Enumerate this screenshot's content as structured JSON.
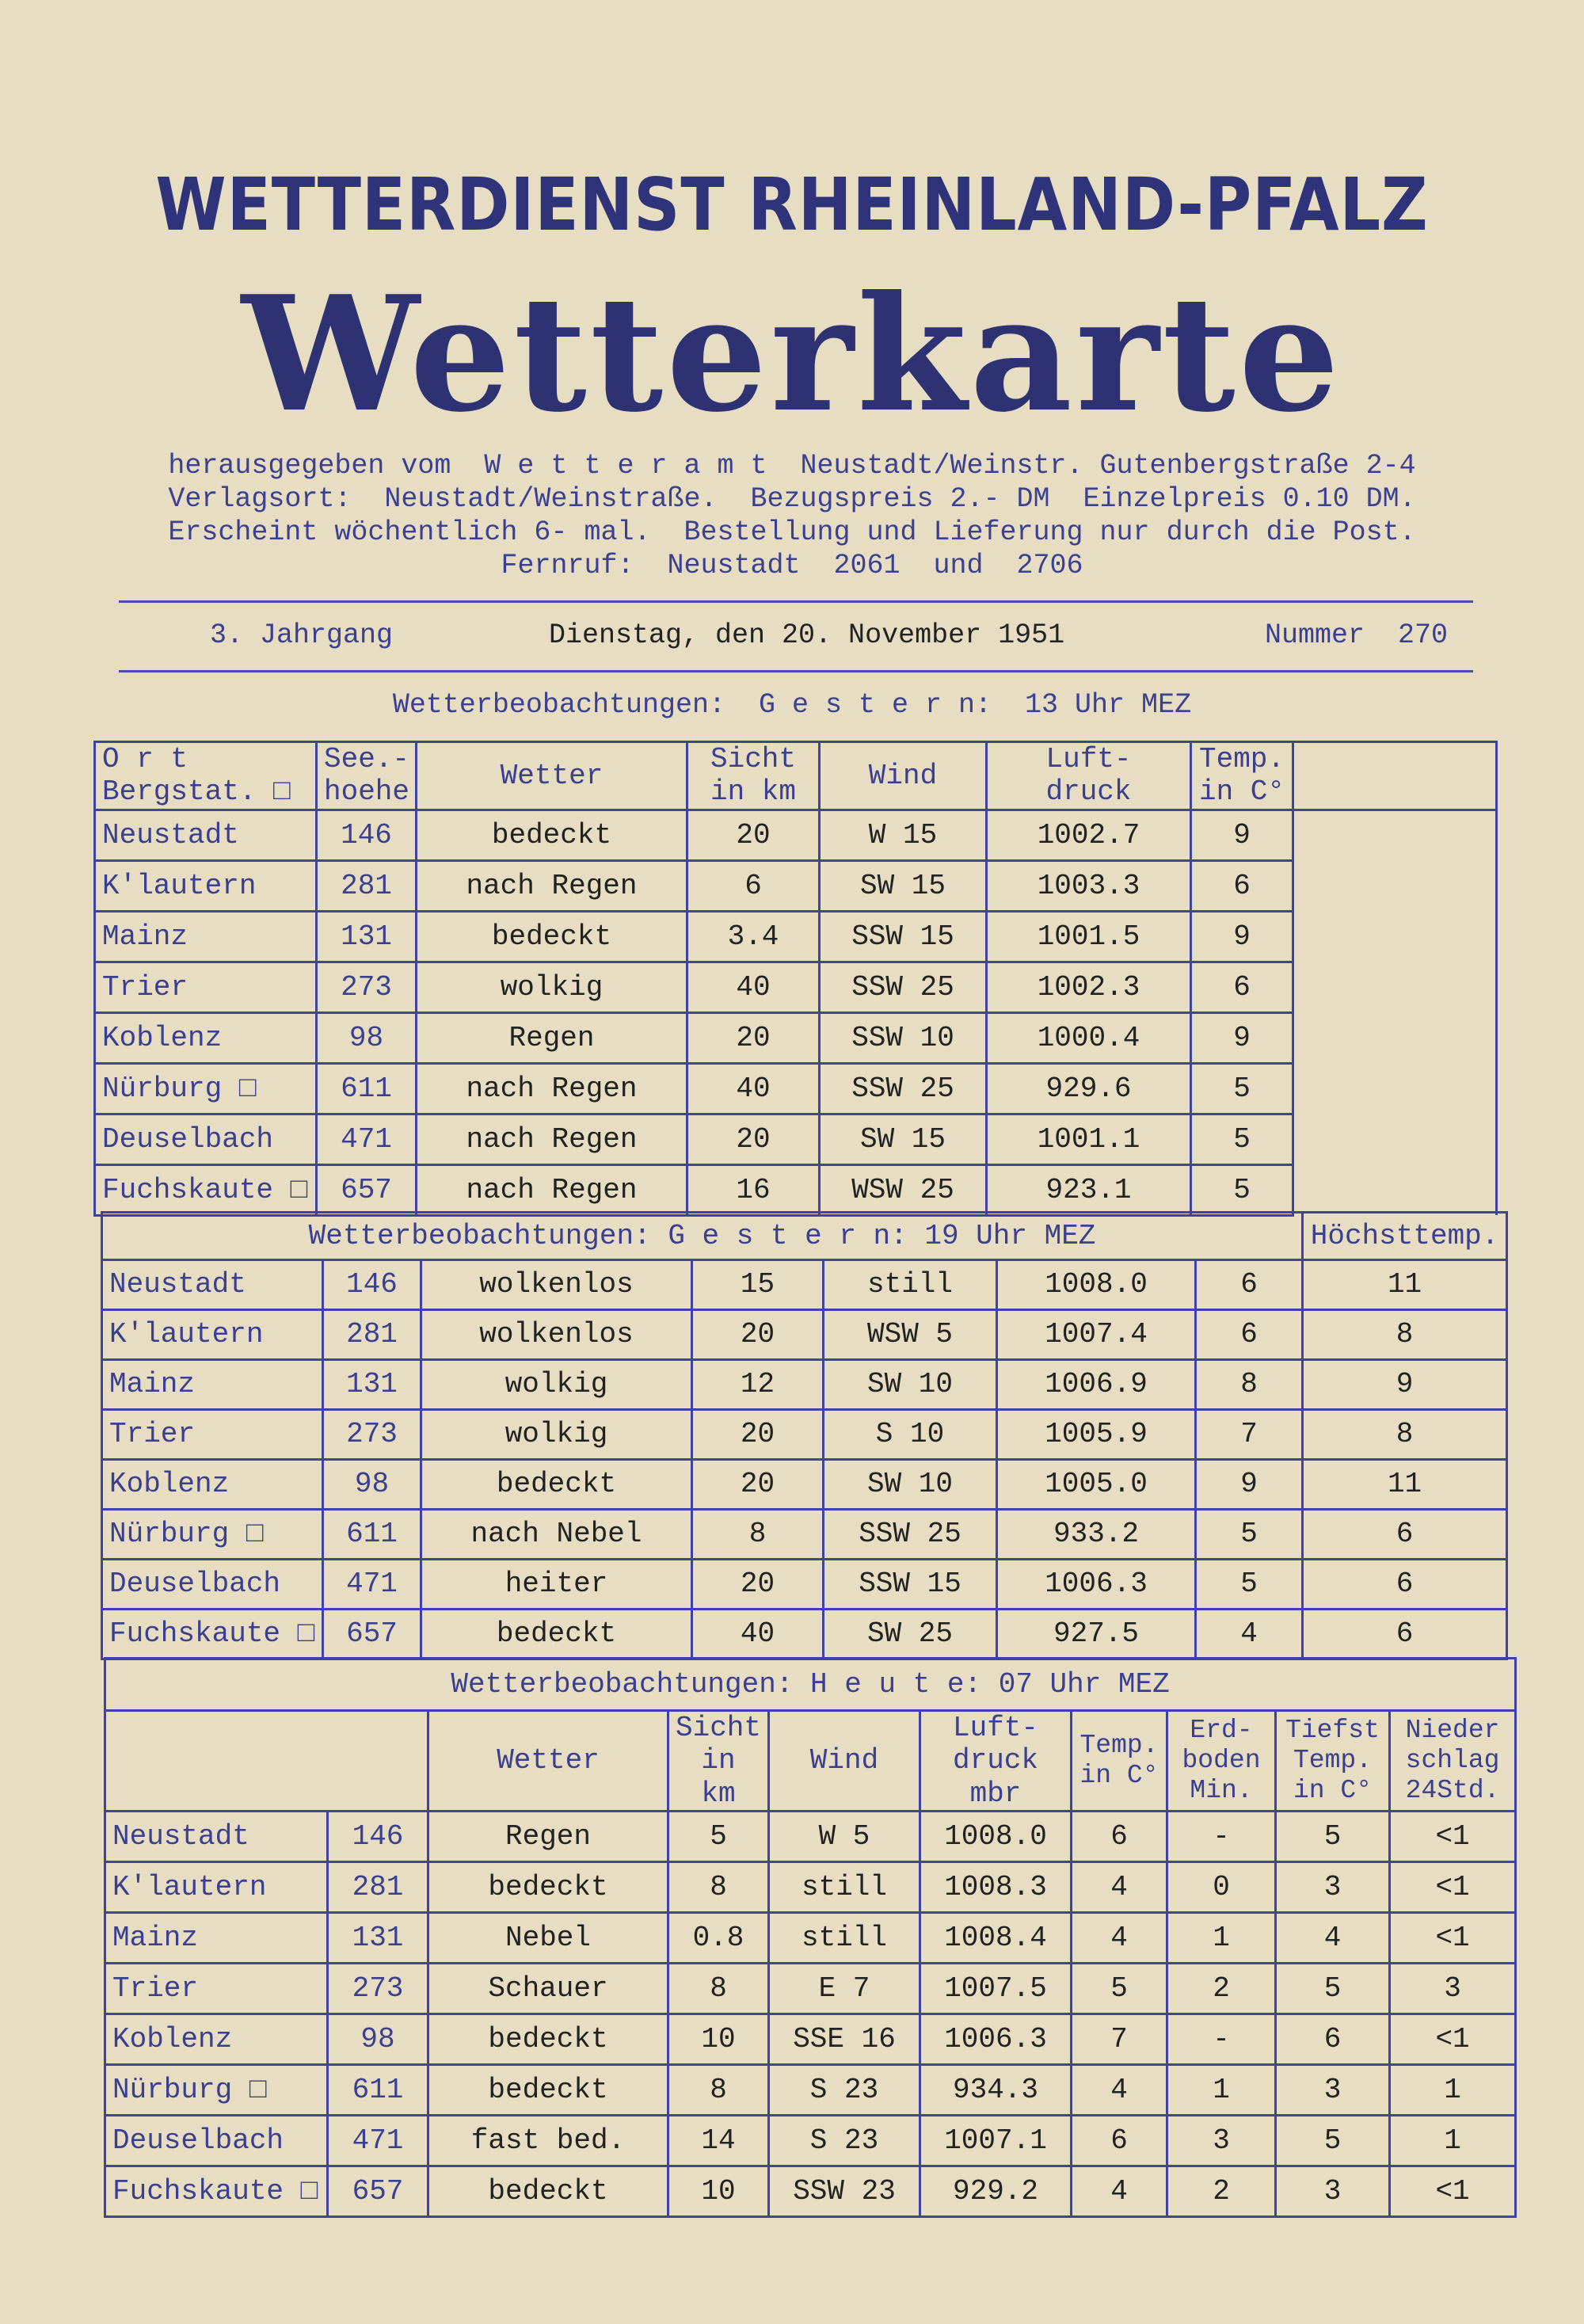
{
  "masthead": {
    "organization": "WETTERDIENST RHEINLAND-PFALZ",
    "title": "Wetterkarte",
    "info_lines": [
      "herausgegeben vom  W e t t e r a m t  Neustadt/Weinstr. Gutenbergstraße 2-4",
      "Verlagsort:  Neustadt/Weinstraße.  Bezugspreis 2.- DM  Einzelpreis 0.10 DM.",
      "Erscheint wöchentlich 6- mal.  Bestellung und Lieferung nur durch die Post.",
      "Fernruf:  Neustadt  2061  und  2706"
    ],
    "volume": "3. Jahrgang",
    "date": "Dienstag, den 20. November 1951",
    "issue": "Nummer  270"
  },
  "tables": [
    {
      "title": "Wetterbeobachtungen:  G e s t e r n:  13 Uhr MEZ",
      "headers": [
        "O  r  t\nBergstat. □",
        "See.-\nhoehe",
        "Wetter",
        "Sicht\nin km",
        "Wind",
        "Luft-\ndruck",
        "Temp.\nin C°",
        ""
      ],
      "rows": [
        [
          "Neustadt",
          "146",
          "bedeckt",
          "20",
          "W    15",
          "1002.7",
          "9"
        ],
        [
          "K'lautern",
          "281",
          "nach  Regen",
          "6",
          "SW  15",
          "1003.3",
          "6"
        ],
        [
          "Mainz",
          "131",
          "bedeckt",
          "3.4",
          "SSW 15",
          "1001.5",
          "9"
        ],
        [
          "Trier",
          "273",
          "wolkig",
          "40",
          "SSW 25",
          "1002.3",
          "6"
        ],
        [
          "Koblenz",
          "98",
          "Regen",
          "20",
          "SSW 10",
          "1000.4",
          "9"
        ],
        [
          "Nürburg  □",
          "611",
          "nach  Regen",
          "40",
          "SSW 25",
          "929.6",
          "5"
        ],
        [
          "Deuselbach",
          "471",
          "nach  Regen",
          "20",
          "SW  15",
          "1001.1",
          "5"
        ],
        [
          "Fuchskaute □",
          "657",
          "nach  Regen",
          "16",
          "WSW 25",
          "923.1",
          "5"
        ]
      ]
    },
    {
      "title": "Wetterbeobachtungen:  G e s t e r n:  19 Uhr MEZ",
      "extra_header": "Höchsttemp.",
      "rows": [
        [
          "Neustadt",
          "146",
          "wolkenlos",
          "15",
          "still",
          "1008.0",
          "6",
          "11"
        ],
        [
          "K'lautern",
          "281",
          "wolkenlos",
          "20",
          "WSW  5",
          "1007.4",
          "6",
          "8"
        ],
        [
          "Mainz",
          "131",
          "wolkig",
          "12",
          "SW  10",
          "1006.9",
          "8",
          "9"
        ],
        [
          "Trier",
          "273",
          "wolkig",
          "20",
          "S   10",
          "1005.9",
          "7",
          "8"
        ],
        [
          "Koblenz",
          "98",
          "bedeckt",
          "20",
          "SW  10",
          "1005.0",
          "9",
          "11"
        ],
        [
          "Nürburg  □",
          "611",
          "nach  Nebel",
          "8",
          "SSW 25",
          "933.2",
          "5",
          "6"
        ],
        [
          "Deuselbach",
          "471",
          "heiter",
          "20",
          "SSW 15",
          "1006.3",
          "5",
          "6"
        ],
        [
          "Fuchskaute □",
          "657",
          "bedeckt",
          "40",
          "SW  25",
          "927.5",
          "4",
          "6"
        ]
      ]
    },
    {
      "title": "Wetterbeobachtungen:  H e u t e:  07 Uhr MEZ",
      "headers": [
        "",
        "Wetter",
        "Sicht\nin km",
        "Wind",
        "Luft-\ndruck\nmbr",
        "Temp.\nin C°",
        "Erd-\nboden\nMin.",
        "Tiefst\nTemp.\nin C°",
        "Nieder\nschlag\n24Std."
      ],
      "rows": [
        [
          "Neustadt",
          "146",
          "Regen",
          "5",
          "W    5",
          "1008.0",
          "6",
          "-",
          "5",
          "<1"
        ],
        [
          "K'lautern",
          "281",
          "bedeckt",
          "8",
          "still",
          "1008.3",
          "4",
          "0",
          "3",
          "<1"
        ],
        [
          "Mainz",
          "131",
          "Nebel",
          "0.8",
          "still",
          "1008.4",
          "4",
          "1",
          "4",
          "<1"
        ],
        [
          "Trier",
          "273",
          "Schauer",
          "8",
          "E    7",
          "1007.5",
          "5",
          "2",
          "5",
          "3"
        ],
        [
          "Koblenz",
          "98",
          "bedeckt",
          "10",
          "SSE 16",
          "1006.3",
          "7",
          "-",
          "6",
          "<1"
        ],
        [
          "Nürburg  □",
          "611",
          "bedeckt",
          "8",
          "S   23",
          "934.3",
          "4",
          "1",
          "3",
          "1"
        ],
        [
          "Deuselbach",
          "471",
          "fast bed.",
          "14",
          "S   23",
          "1007.1",
          "6",
          "3",
          "5",
          "1"
        ],
        [
          "Fuchskaute □",
          "657",
          "bedeckt",
          "10",
          "SSW 23",
          "929.2",
          "4",
          "2",
          "3",
          "<1"
        ]
      ]
    }
  ],
  "colors": {
    "ink_blue": "#3a3f8f",
    "rule_blue": "#3d43a0",
    "paper": "#e7ddc2",
    "typewriter_black": "#222222"
  }
}
